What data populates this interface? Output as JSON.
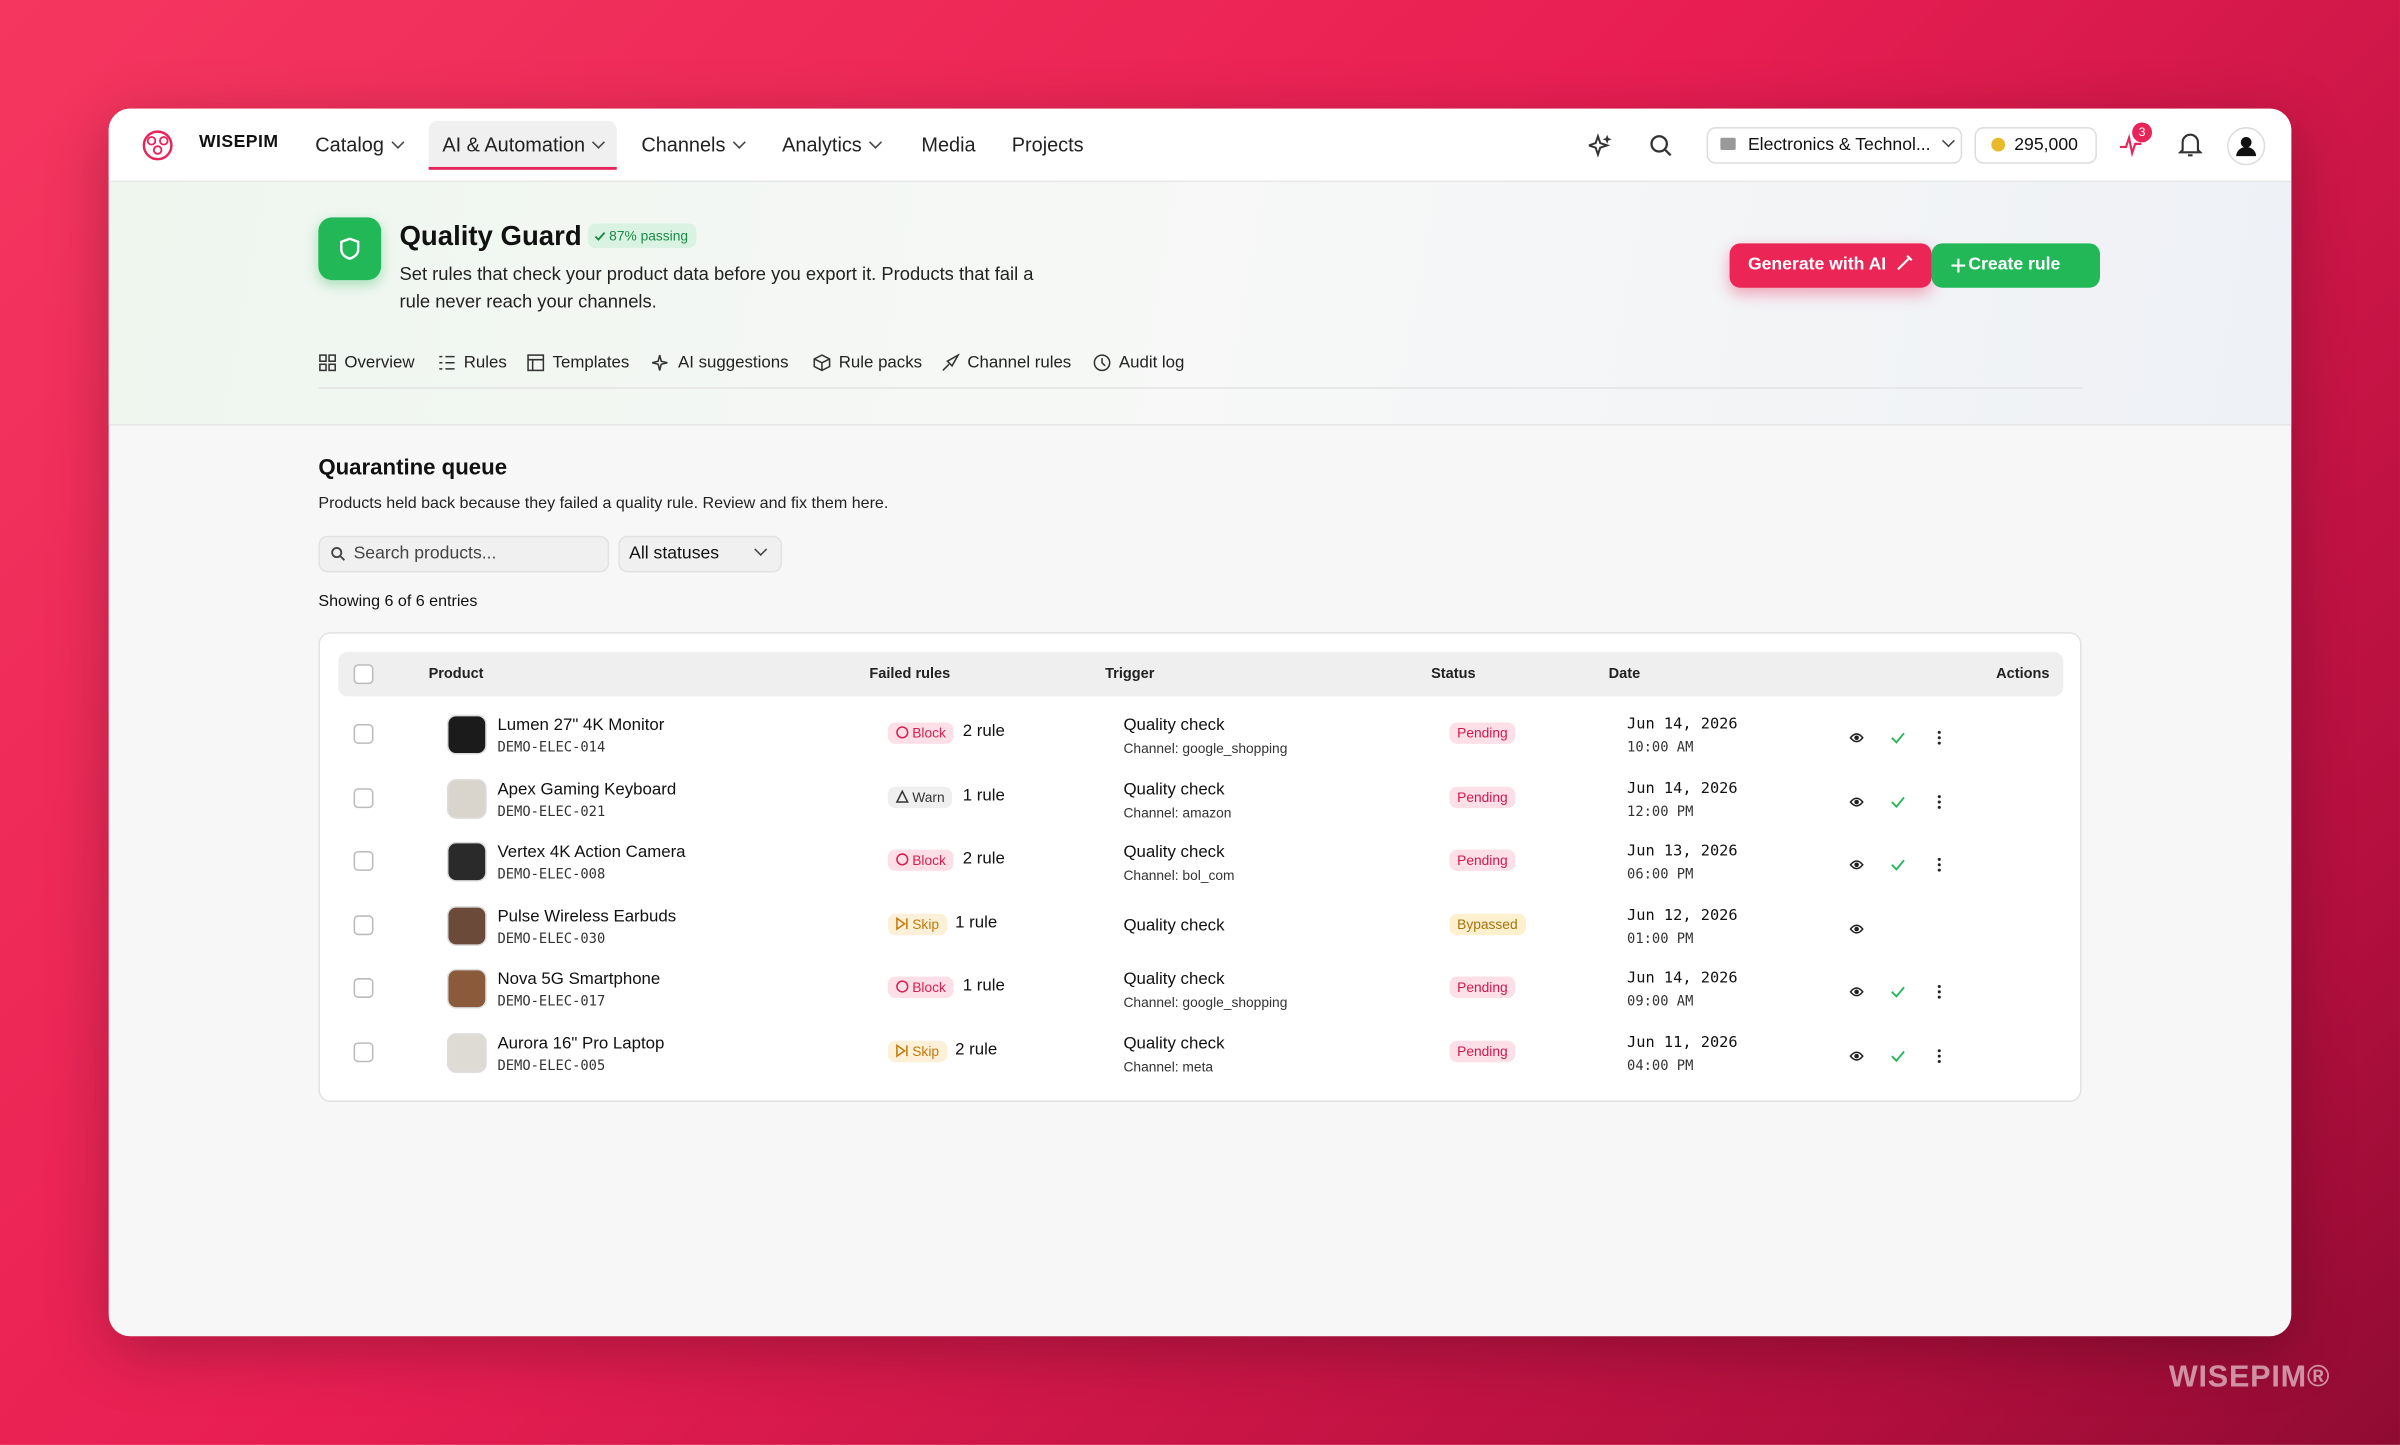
{
  "nav": {
    "brand": "WISEPIM",
    "items": [
      "Catalog",
      "AI & Automation",
      "Channels",
      "Analytics",
      "Media",
      "Projects"
    ],
    "workspace": "Electronics & Technol...",
    "credits": "295,000",
    "notification_count": "3"
  },
  "header": {
    "title": "Quality Guard",
    "badge": "87% passing",
    "description": "Set rules that check your product data before you export it. Products that fail a rule never reach your channels.",
    "primary_button": "Generate with AI",
    "secondary_button": "Create rule"
  },
  "tabs": [
    "Overview",
    "Rules",
    "Templates",
    "AI suggestions",
    "Rule packs",
    "Channel rules",
    "Audit log"
  ],
  "section": {
    "title": "Quarantine queue",
    "description": "Products held back because they failed a quality rule. Review and fix them here.",
    "search_placeholder": "Search products...",
    "status_filter": "All statuses",
    "count_text": "Showing 6 of 6 entries"
  },
  "table": {
    "columns": [
      "Product",
      "Failed rules",
      "Trigger",
      "Status",
      "Date",
      "Actions"
    ],
    "rows": [
      {
        "name": "Lumen 27\" 4K Monitor",
        "sku": "DEMO-ELEC-014",
        "action": "Block",
        "rules": "2 rule",
        "trigger": "Quality check",
        "channel": "Channel: google_shopping",
        "status": "Pending",
        "date": "Jun 14, 2026",
        "time": "10:00 AM"
      },
      {
        "name": "Apex Gaming Keyboard",
        "sku": "DEMO-ELEC-021",
        "action": "Warn",
        "rules": "1 rule",
        "trigger": "Quality check",
        "channel": "Channel: amazon",
        "status": "Pending",
        "date": "Jun 14, 2026",
        "time": "12:00 PM"
      },
      {
        "name": "Vertex 4K Action Camera",
        "sku": "DEMO-ELEC-008",
        "action": "Block",
        "rules": "2 rule",
        "trigger": "Quality check",
        "channel": "Channel: bol_com",
        "status": "Pending",
        "date": "Jun 13, 2026",
        "time": "06:00 PM"
      },
      {
        "name": "Pulse Wireless Earbuds",
        "sku": "DEMO-ELEC-030",
        "action": "Skip",
        "rules": "1 rule",
        "trigger": "Quality check",
        "status": "Bypassed",
        "date": "Jun 12, 2026",
        "time": "01:00 PM"
      },
      {
        "name": "Nova 5G Smartphone",
        "sku": "DEMO-ELEC-017",
        "action": "Block",
        "rules": "1 rule",
        "trigger": "Quality check",
        "channel": "Channel: google_shopping",
        "status": "Pending",
        "date": "Jun 14, 2026",
        "time": "09:00 AM"
      },
      {
        "name": "Aurora 16\" Pro Laptop",
        "sku": "DEMO-ELEC-005",
        "action": "Skip",
        "rules": "2 rule",
        "trigger": "Quality check",
        "channel": "Channel: meta",
        "status": "Pending",
        "date": "Jun 11, 2026",
        "time": "04:00 PM"
      }
    ]
  },
  "watermark": "WISEPIM®"
}
